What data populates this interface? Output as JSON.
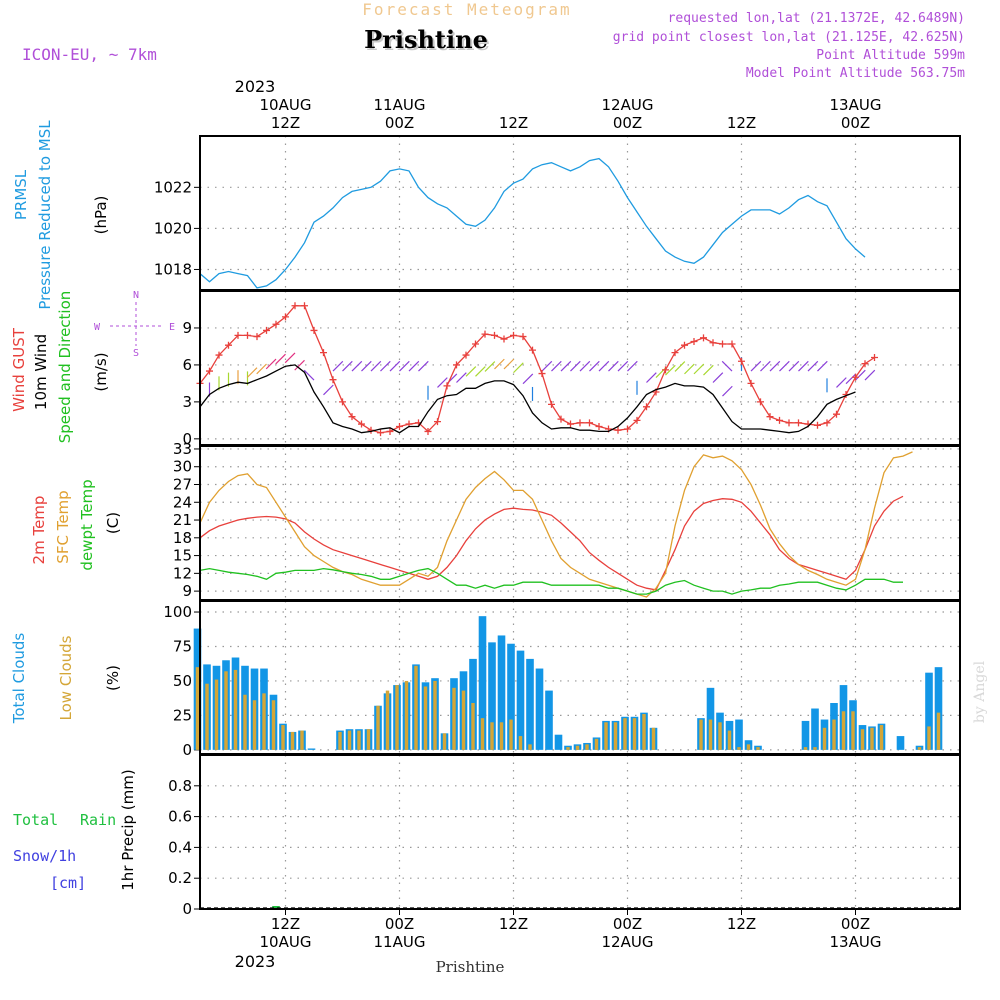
{
  "header": {
    "subtitle_top": "Forecast Meteogram",
    "location": "Prishtine",
    "model": "ICON-EU, ~ 7km",
    "requested": "requested lon,lat (21.1372E, 42.6489N)",
    "gridpoint": "grid point closest lon,lat (21.125E, 42.625N)",
    "point_altitude": "Point Altitude 599m",
    "model_altitude": "Model Point Altitude 563.75m",
    "footer_location": "Prishtine",
    "watermark": "by Angel"
  },
  "time_axis": {
    "top_year": "2023",
    "bottom_year": "2023",
    "ticks": [
      {
        "t": 12,
        "top": "10AUG",
        "bottom": "12Z"
      },
      {
        "t": 24,
        "top": "11AUG",
        "bottom": "00Z"
      },
      {
        "t": 36,
        "top": "",
        "bottom": "12Z"
      },
      {
        "t": 48,
        "top": "12AUG",
        "bottom": "00Z"
      },
      {
        "t": 60,
        "top": "",
        "bottom": "12Z"
      },
      {
        "t": 72,
        "top": "13AUG",
        "bottom": "00Z"
      }
    ],
    "bottom_ticks": [
      {
        "t": 12,
        "hour": "12Z",
        "date": "10AUG"
      },
      {
        "t": 24,
        "hour": "00Z",
        "date": "11AUG"
      },
      {
        "t": 36,
        "hour": "12Z",
        "date": ""
      },
      {
        "t": 48,
        "hour": "00Z",
        "date": "12AUG"
      },
      {
        "t": 60,
        "hour": "12Z",
        "date": ""
      },
      {
        "t": 72,
        "hour": "00Z",
        "date": "13AUG"
      }
    ]
  },
  "labels": {
    "pressure": {
      "l1": "PRMSL",
      "l2": "Pressure Reduced to MSL",
      "unit": "(hPa)"
    },
    "wind": {
      "l1": "Wind GUST",
      "l2": "10m Wind",
      "l3": "Speed and Direction",
      "unit": "(m/s)",
      "compass_n": "N",
      "compass_s": "S",
      "compass_w": "W",
      "compass_e": "E"
    },
    "temp": {
      "l1": "2m Temp",
      "l2": "SFC Temp",
      "l3": "dewpt Temp",
      "unit": "(C)"
    },
    "clouds": {
      "l1": "Total Clouds",
      "l2": "Low Clouds",
      "unit": "(%)"
    },
    "precip": {
      "l1": "Total",
      "l1b": "Rain",
      "l2": "Snow/1h",
      "l3": "[cm]",
      "axis": "1hr Precip (mm)"
    }
  },
  "colors": {
    "pressure": "#1f9be0",
    "gust": "#e8403c",
    "wind": "#000000",
    "t2m": "#e8403c",
    "sfc": "#e0a030",
    "dew": "#20c020",
    "total_cloud": "#1296e6",
    "low_cloud": "#d4a637",
    "rain": "#20c040",
    "snow": "#4040e0",
    "header_purple": "#b04fd8",
    "header_orange": "#f0c890"
  },
  "chart_data": [
    {
      "type": "line",
      "name": "pressure",
      "ylim": [
        1017,
        1024.5
      ],
      "yticks": [
        1018,
        1020,
        1022
      ],
      "t0": 3,
      "dt": 1,
      "series": [
        {
          "name": "PRMSL",
          "values": [
            1017.8,
            1017.4,
            1017.8,
            1017.9,
            1017.8,
            1017.7,
            1017.1,
            1017.2,
            1017.5,
            1018.0,
            1018.6,
            1019.3,
            1020.3,
            1020.6,
            1021.0,
            1021.5,
            1021.8,
            1021.9,
            1022.0,
            1022.3,
            1022.8,
            1022.9,
            1022.8,
            1022.0,
            1021.5,
            1021.2,
            1021.0,
            1020.6,
            1020.2,
            1020.1,
            1020.4,
            1021.0,
            1021.8,
            1022.2,
            1022.4,
            1022.9,
            1023.1,
            1023.2,
            1023.0,
            1022.8,
            1023.0,
            1023.3,
            1023.4,
            1023.0,
            1022.3,
            1021.5,
            1020.8,
            1020.1,
            1019.5,
            1018.9,
            1018.6,
            1018.4,
            1018.3,
            1018.6,
            1019.2,
            1019.8,
            1020.2,
            1020.6,
            1020.9,
            1020.9,
            1020.9,
            1020.7,
            1021.0,
            1021.4,
            1021.6,
            1021.3,
            1021.1,
            1020.3,
            1019.5,
            1019.0,
            1018.6
          ]
        }
      ]
    },
    {
      "type": "line",
      "name": "wind",
      "ylim": [
        -0.5,
        12
      ],
      "yticks": [
        0,
        3,
        6,
        9
      ],
      "t0": 3,
      "dt": 1,
      "series": [
        {
          "name": "Wind GUST",
          "values": [
            4.5,
            5.5,
            6.8,
            7.6,
            8.4,
            8.4,
            8.3,
            8.8,
            9.3,
            9.9,
            10.8,
            10.8,
            8.8,
            7.0,
            4.8,
            3.0,
            1.8,
            1.2,
            0.7,
            0.5,
            0.6,
            1.0,
            1.2,
            1.3,
            0.6,
            1.4,
            4.3,
            6.0,
            6.8,
            7.7,
            8.5,
            8.4,
            8.1,
            8.4,
            8.3,
            7.2,
            5.3,
            2.8,
            1.6,
            1.2,
            1.3,
            1.3,
            1.0,
            0.8,
            0.7,
            0.8,
            1.5,
            2.6,
            3.8,
            5.6,
            7.0,
            7.6,
            7.9,
            8.2,
            7.8,
            7.7,
            7.7,
            6.3,
            4.5,
            3.0,
            1.8,
            1.5,
            1.3,
            1.3,
            1.2,
            1.1,
            1.3,
            2.0,
            3.6,
            5.0,
            6.1,
            6.6
          ]
        },
        {
          "name": "10m Wind",
          "values": [
            2.6,
            3.6,
            4.1,
            4.4,
            4.6,
            4.5,
            4.8,
            5.1,
            5.5,
            5.9,
            6.0,
            5.4,
            3.8,
            2.6,
            1.3,
            1.0,
            0.8,
            0.5,
            0.6,
            0.8,
            0.9,
            0.5,
            1.0,
            1.0,
            2.2,
            3.2,
            3.5,
            3.6,
            4.1,
            4.1,
            4.5,
            4.7,
            4.7,
            4.4,
            3.5,
            2.1,
            1.3,
            0.8,
            0.9,
            0.9,
            0.7,
            0.7,
            0.6,
            0.6,
            1.0,
            1.7,
            2.6,
            3.6,
            4.0,
            4.2,
            4.5,
            4.3,
            4.3,
            4.2,
            3.6,
            2.5,
            1.4,
            0.8,
            0.8,
            0.8,
            0.7,
            0.6,
            0.5,
            0.6,
            1.0,
            1.8,
            2.8,
            3.2,
            3.5,
            3.8
          ]
        }
      ],
      "barbs_dir": [
        "S",
        "S",
        "S",
        "S",
        "S",
        "S",
        "SW",
        "SW",
        "SW",
        "SW",
        "SW",
        "SW",
        "NW",
        "NE",
        "NE",
        "NE",
        "NE",
        "NE",
        "NE",
        "NE",
        "NE",
        "NE",
        "NE",
        "NE",
        "N",
        "NE",
        "NE",
        "NE",
        "NE",
        "NE",
        "NE",
        "NE",
        "NE",
        "NE",
        "NE",
        "N",
        "NE",
        "NE",
        "NE",
        "NE",
        "NE",
        "NE",
        "NE",
        "NE",
        "NE",
        "NE",
        "N",
        "NE",
        "NE",
        "NE",
        "NE",
        "NE",
        "NE",
        "NE",
        "NE",
        "NE",
        "NW",
        "N",
        "NE",
        "NE",
        "NE",
        "NE",
        "NE",
        "NE",
        "NE",
        "NE",
        "N",
        "NE",
        "NE",
        "NE",
        "NE"
      ]
    },
    {
      "type": "line",
      "name": "temperature",
      "ylim": [
        7.5,
        33.5
      ],
      "yticks": [
        9,
        12,
        15,
        18,
        21,
        24,
        27,
        30,
        33
      ],
      "t0": 3,
      "dt": 1,
      "series": [
        {
          "name": "2m Temp",
          "values": [
            18.0,
            19.2,
            20.0,
            20.5,
            21.0,
            21.3,
            21.5,
            21.6,
            21.5,
            21.2,
            20.5,
            19.0,
            17.8,
            16.8,
            16.0,
            15.5,
            15.0,
            14.5,
            14.0,
            13.5,
            13.0,
            12.5,
            12.0,
            11.5,
            11.0,
            11.5,
            13.0,
            15.0,
            17.5,
            19.5,
            21.0,
            22.0,
            22.8,
            23.0,
            22.8,
            22.7,
            22.3,
            21.8,
            20.5,
            19.0,
            17.5,
            15.5,
            14.2,
            13.0,
            12.0,
            11.0,
            10.0,
            9.5,
            9.2,
            12.5,
            16.0,
            20.0,
            22.5,
            23.8,
            24.3,
            24.6,
            24.5,
            24.0,
            22.5,
            20.5,
            18.5,
            16.0,
            14.5,
            13.5,
            13.0,
            12.5,
            12.0,
            11.5,
            11.0,
            12.5,
            16.0,
            20.0,
            22.5,
            24.2,
            25.0
          ]
        },
        {
          "name": "SFC Temp",
          "values": [
            20.5,
            24.0,
            26.0,
            27.5,
            28.5,
            28.8,
            27.0,
            26.5,
            24.0,
            21.5,
            19.0,
            16.5,
            15.0,
            14.0,
            13.0,
            12.3,
            11.8,
            11.0,
            10.5,
            10.0,
            10.0,
            10.0,
            11.0,
            12.0,
            11.5,
            13.0,
            17.5,
            21.0,
            24.5,
            26.5,
            28.0,
            29.2,
            27.8,
            26.0,
            26.0,
            24.5,
            21.0,
            17.5,
            14.5,
            13.0,
            12.0,
            11.0,
            10.5,
            10.0,
            9.5,
            9.0,
            8.5,
            8.0,
            9.5,
            12.0,
            20.0,
            26.0,
            30.0,
            32.0,
            31.5,
            31.8,
            31.0,
            29.5,
            27.0,
            23.5,
            19.5,
            17.0,
            15.0,
            13.5,
            12.5,
            11.8,
            11.0,
            10.5,
            10.0,
            11.0,
            16.0,
            23.0,
            29.0,
            31.5,
            31.8,
            32.5
          ]
        },
        {
          "name": "dewpt Temp",
          "values": [
            12.5,
            12.8,
            12.5,
            12.2,
            12.0,
            11.8,
            11.5,
            11.0,
            12.0,
            12.2,
            12.5,
            12.5,
            12.5,
            12.8,
            12.6,
            12.3,
            12.0,
            11.8,
            11.5,
            11.0,
            11.0,
            11.5,
            12.0,
            12.5,
            12.8,
            12.0,
            11.0,
            10.0,
            10.0,
            9.5,
            10.0,
            9.5,
            10.0,
            10.0,
            10.5,
            10.5,
            10.5,
            10.0,
            10.0,
            10.0,
            10.0,
            10.0,
            10.0,
            9.5,
            9.5,
            9.0,
            8.5,
            8.5,
            9.0,
            10.0,
            10.5,
            10.8,
            10.0,
            9.5,
            9.0,
            9.0,
            8.5,
            9.0,
            9.2,
            9.5,
            9.5,
            10.0,
            10.2,
            10.5,
            10.5,
            10.5,
            10.0,
            9.5,
            9.2,
            10.0,
            11.0,
            11.0,
            11.0,
            10.5,
            10.5
          ]
        }
      ]
    },
    {
      "type": "bar",
      "name": "clouds",
      "ylim": [
        -3,
        108
      ],
      "yticks": [
        0,
        25,
        50,
        75,
        100
      ],
      "t0": 3,
      "dt": 1,
      "series": [
        {
          "name": "Total Clouds",
          "values": [
            88,
            62,
            61,
            65,
            67,
            61,
            59,
            59,
            40,
            19,
            13,
            14,
            1,
            0,
            0,
            14,
            15,
            15,
            15,
            32,
            41,
            47,
            49,
            62,
            49,
            52,
            12,
            52,
            57,
            66,
            97,
            78,
            83,
            77,
            72,
            66,
            59,
            43,
            11,
            3,
            4,
            5,
            9,
            21,
            21,
            24,
            24,
            27,
            16,
            0,
            0,
            0,
            0,
            23,
            45,
            27,
            21,
            22,
            7,
            3,
            0,
            0,
            0,
            0,
            21,
            30,
            22,
            34,
            47,
            36,
            18,
            17,
            19,
            0,
            10,
            0,
            3,
            56,
            60
          ]
        },
        {
          "name": "Low Clouds",
          "values": [
            60,
            48,
            51,
            57,
            58,
            40,
            36,
            41,
            36,
            18,
            13,
            14,
            0,
            0,
            0,
            13,
            14,
            14,
            15,
            32,
            43,
            47,
            50,
            61,
            46,
            50,
            12,
            45,
            43,
            34,
            23,
            20,
            20,
            22,
            10,
            4,
            0,
            0,
            0,
            2,
            3,
            4,
            8,
            20,
            20,
            23,
            23,
            26,
            16,
            0,
            0,
            0,
            0,
            22,
            22,
            20,
            14,
            2,
            4,
            2,
            0,
            0,
            0,
            0,
            2,
            2,
            16,
            22,
            28,
            28,
            15,
            16,
            18,
            0,
            0,
            0,
            2,
            17,
            27
          ]
        }
      ]
    },
    {
      "type": "bar",
      "name": "precip",
      "ylim": [
        0,
        1.0
      ],
      "yticks": [
        0,
        0.2,
        0.4,
        0.6,
        0.8
      ],
      "t0": 3,
      "dt": 1,
      "series": [
        {
          "name": "Total Rain",
          "values": [
            0,
            0,
            0,
            0,
            0,
            0,
            0,
            0,
            0.01
          ]
        }
      ]
    }
  ]
}
